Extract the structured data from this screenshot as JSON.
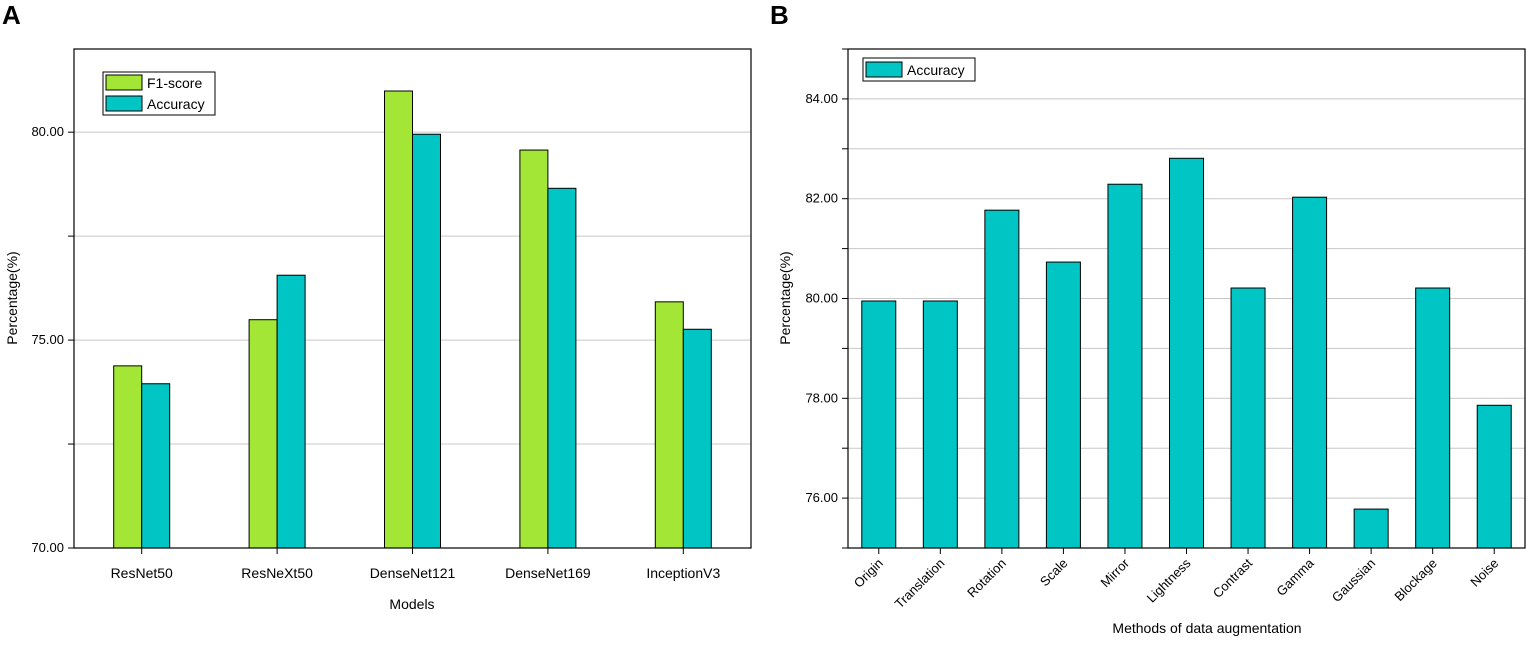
{
  "chart_data": [
    {
      "panel": "A",
      "type": "bar",
      "categories": [
        "ResNet50",
        "ResNeXt50",
        "DenseNet121",
        "DenseNet169",
        "InceptionV3"
      ],
      "series": [
        {
          "name": "F1-score",
          "color": "#a3e635",
          "values": [
            74.38,
            75.49,
            80.99,
            79.57,
            75.92
          ]
        },
        {
          "name": "Accuracy",
          "color": "#00c5c5",
          "values": [
            73.95,
            76.56,
            79.95,
            78.65,
            75.26
          ]
        }
      ],
      "title": "",
      "xlabel": "Models",
      "ylabel": "Percentage(%)",
      "ylim": [
        70,
        82
      ],
      "yticks": [
        70,
        75,
        80
      ],
      "ytick_labels": [
        "70.00",
        "75.00",
        "80.00"
      ],
      "grid": true,
      "legend": "top-left"
    },
    {
      "panel": "B",
      "type": "bar",
      "categories": [
        "Origin",
        "Translation",
        "Rotation",
        "Scale",
        "Mirror",
        "Lightness",
        "Contrast",
        "Gamma",
        "Gaussian",
        "Blockage",
        "Noise"
      ],
      "series": [
        {
          "name": "Accuracy",
          "color": "#00c5c5",
          "values": [
            79.95,
            79.95,
            81.77,
            80.73,
            82.29,
            82.81,
            80.21,
            82.03,
            75.78,
            80.21,
            77.86
          ]
        }
      ],
      "title": "",
      "xlabel": "Methods of data augmentation",
      "ylabel": "Percentage(%)",
      "ylim": [
        75,
        85
      ],
      "yticks": [
        76,
        78,
        80,
        82,
        84
      ],
      "ytick_labels": [
        "76.00",
        "78.00",
        "80.00",
        "82.00",
        "84.00"
      ],
      "grid": true,
      "legend": "top-left"
    }
  ]
}
